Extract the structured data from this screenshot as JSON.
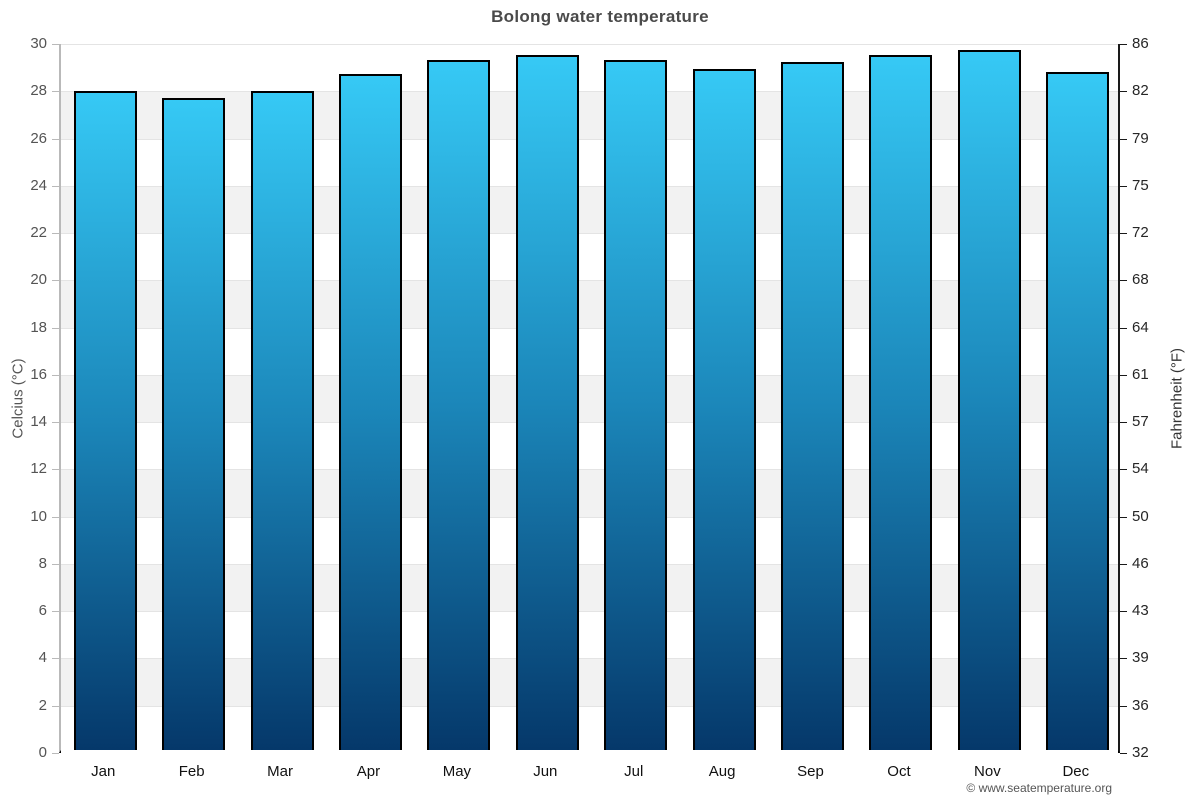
{
  "chart_data": {
    "type": "bar",
    "title": "Bolong water temperature",
    "categories": [
      "Jan",
      "Feb",
      "Mar",
      "Apr",
      "May",
      "Jun",
      "Jul",
      "Aug",
      "Sep",
      "Oct",
      "Nov",
      "Dec"
    ],
    "values": [
      27.9,
      27.6,
      27.9,
      28.6,
      29.2,
      29.4,
      29.2,
      28.8,
      29.1,
      29.4,
      29.6,
      28.7
    ],
    "ylabel_left": "Celcius (°C)",
    "ylabel_right": "Fahrenheit (°F)",
    "ylim": [
      0,
      30
    ],
    "celsius_ticks": [
      0,
      2,
      4,
      6,
      8,
      10,
      12,
      14,
      16,
      18,
      20,
      22,
      24,
      26,
      28,
      30
    ],
    "fahrenheit_tick_labels": [
      "32",
      "36",
      "39",
      "43",
      "46",
      "50",
      "54",
      "57",
      "61",
      "64",
      "68",
      "72",
      "75",
      "79",
      "82",
      "86"
    ],
    "grid": "horizontal-bands-every-2C",
    "legend": "none",
    "colors": {
      "bar_top": "#36c9f5",
      "bar_bottom": "#05386a",
      "bar_border": "#000000",
      "band_gray": "#f2f2f2",
      "band_white": "#ffffff",
      "gridline": "#e4e4e4",
      "title_text": "#4a4a4a"
    }
  },
  "footer": {
    "credit": "© www.seatemperature.org"
  }
}
